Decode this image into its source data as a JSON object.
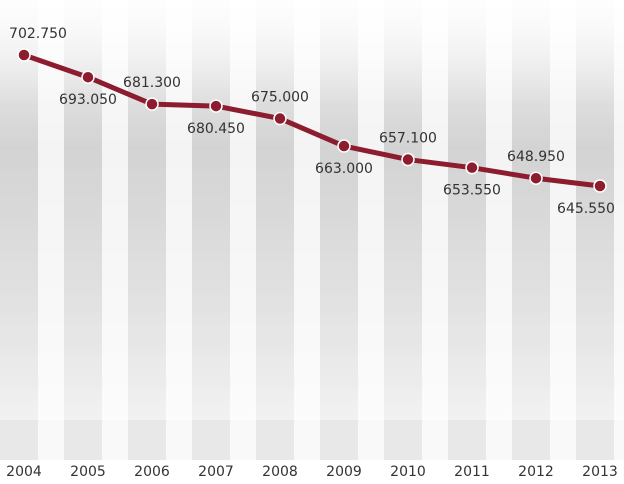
{
  "chart_data": {
    "type": "line",
    "categories": [
      "2004",
      "2005",
      "2006",
      "2007",
      "2008",
      "2009",
      "2010",
      "2011",
      "2012",
      "2013"
    ],
    "series": [
      {
        "color": "#8c1c2e",
        "values": [
          702.75,
          693.05,
          681.3,
          680.45,
          675,
          663,
          657.1,
          653.55,
          648.95,
          645.55
        ],
        "value_labels": [
          "702.750",
          "693.050",
          "681.300",
          "680.450",
          "675.000",
          "663.000",
          "657.100",
          "653.550",
          "648.950",
          "645.550"
        ]
      }
    ]
  }
}
